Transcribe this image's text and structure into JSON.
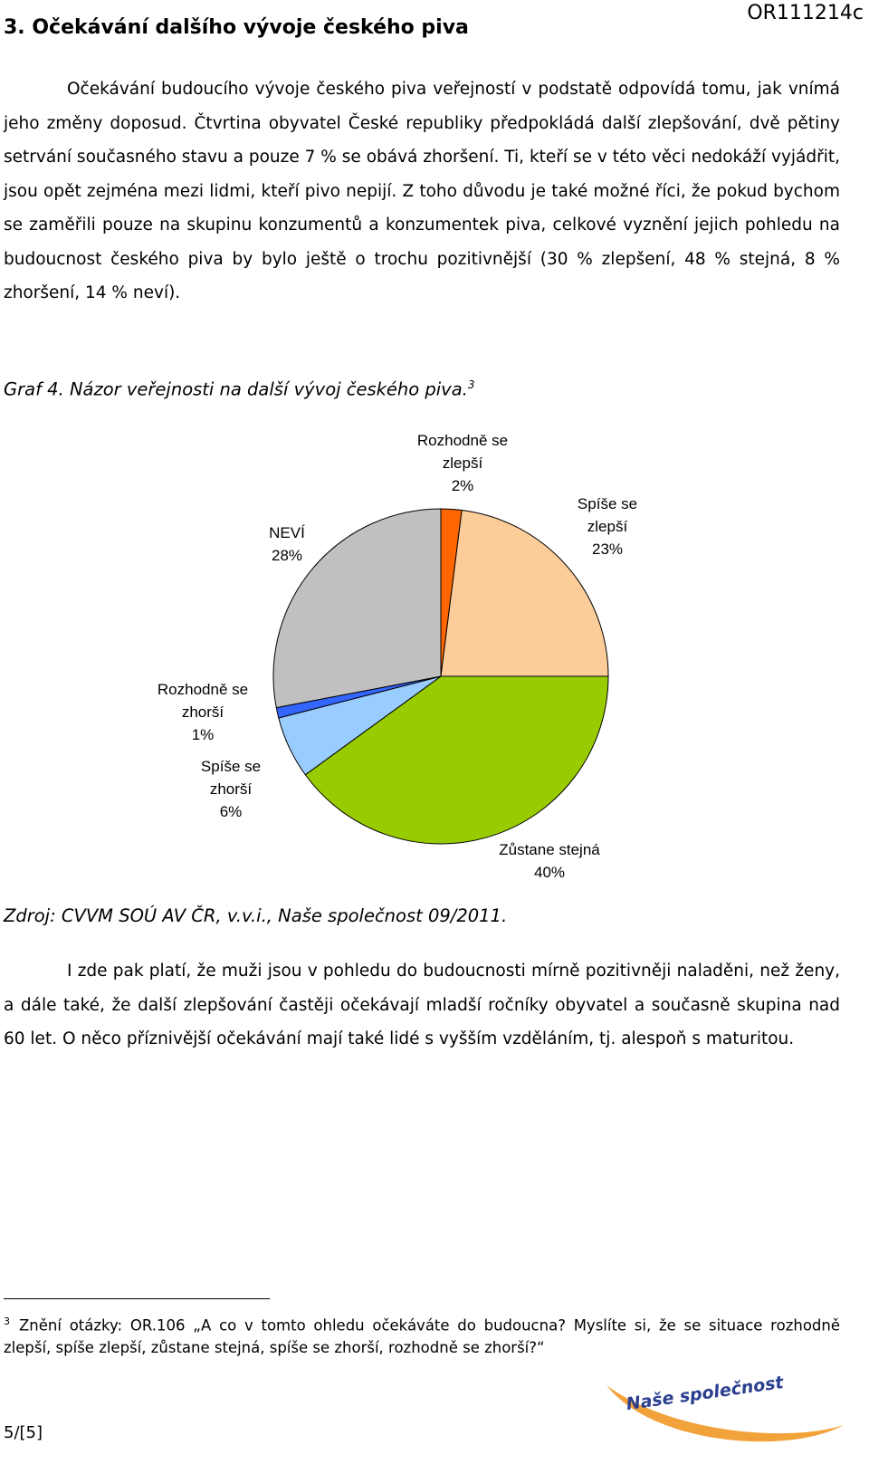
{
  "header": {
    "section_title": "3. Očekávání dalšího vývoje českého piva",
    "doc_code": "OR111214c"
  },
  "paragraphs": {
    "p1_text": "Očekávání budoucího vývoje českého piva veřejností v podstatě odpovídá tomu, jak vnímá jeho změny doposud. Čtvrtina obyvatel České republiky předpokládá další zlepšování, dvě pětiny setrvání současného stavu a pouze 7 % se obává zhoršení. Ti, kteří se v této věci nedokáží vyjádřit, jsou opět zejména mezi lidmi, kteří pivo nepijí. Z toho důvodu je také možné říci, že pokud bychom se zaměřili pouze na skupinu konzumentů a konzumentek piva, celkové vyznění jejich pohledu na budoucnost českého piva by bylo ještě o trochu pozitivnější (30 % zlepšení, 48 % stejná, 8 % zhoršení, 14 % neví).",
    "p2_text": "I zde pak platí, že muži jsou v pohledu do budoucnosti mírně pozitivněji naladěni, než ženy, a dále také, že další zlepšování častěji očekávají mladší ročníky obyvatel a současně skupina nad 60 let. O něco příznivější očekávání mají také lidé s vyšším vzděláním, tj. alespoň s maturitou."
  },
  "graph": {
    "caption": "Graf 4. Názor veřejnosti na další vývoj českého piva.",
    "caption_footnote_mark": "3",
    "source": "Zdroj: CVVM SOÚ AV ČR, v.v.i., Naše společnost 09/2011."
  },
  "chart_data": {
    "type": "pie",
    "slices": [
      {
        "label_lines": [
          "Rozhodně se",
          "zlepší",
          "2%"
        ],
        "value": 2,
        "color": "#FF6600"
      },
      {
        "label_lines": [
          "Spíše se",
          "zlepší",
          "23%"
        ],
        "value": 23,
        "color": "#FCCC99"
      },
      {
        "label_lines": [
          "Zůstane stejná",
          "40%"
        ],
        "value": 40,
        "color": "#99CC00"
      },
      {
        "label_lines": [
          "Spíše se",
          "zhorší",
          "6%"
        ],
        "value": 6,
        "color": "#99CCFF"
      },
      {
        "label_lines": [
          "Rozhodně se",
          "zhorší",
          "1%"
        ],
        "value": 1,
        "color": "#3366FF"
      },
      {
        "label_lines": [
          "NEVÍ",
          "28%"
        ],
        "value": 28,
        "color": "#C0C0C0"
      }
    ]
  },
  "footnote": {
    "mark": "3",
    "text": "Znění otázky: OR.106 „A co v tomto ohledu očekáváte do budoucna? Myslíte si, že se situace rozhodně zlepší, spíše zlepší, zůstane stejná, spíše se zhorší, rozhodně se zhorší?“"
  },
  "footer": {
    "page_number": "5/[5]",
    "logo_text": "Naše společnost",
    "logo_colors": {
      "swoosh": "#F2A23A",
      "text": "#2B3F8F"
    }
  }
}
